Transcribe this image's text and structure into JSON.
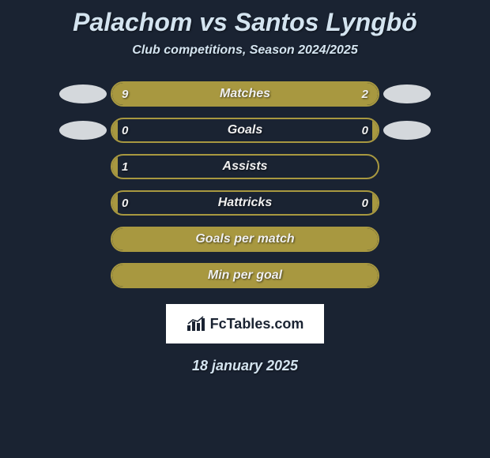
{
  "title": "Palachom vs Santos Lyngbö",
  "subtitle": "Club competitions, Season 2024/2025",
  "footer_date": "18 january 2025",
  "logo_text": "FcTables.com",
  "colors": {
    "background": "#1a2332",
    "bar_fill": "#a89840",
    "bar_border": "#a89840",
    "text": "#d4e4f0",
    "avatar": "#d4d8dc"
  },
  "rows": [
    {
      "label": "Matches",
      "left_value": "9",
      "right_value": "2",
      "left_pct": 82,
      "right_pct": 18,
      "show_avatars": true,
      "full_fill": true
    },
    {
      "label": "Goals",
      "left_value": "0",
      "right_value": "0",
      "left_pct": 2,
      "right_pct": 2,
      "show_avatars": true,
      "full_fill": false
    },
    {
      "label": "Assists",
      "left_value": "1",
      "right_value": "",
      "left_pct": 2,
      "right_pct": 0,
      "show_avatars": false,
      "full_fill": false
    },
    {
      "label": "Hattricks",
      "left_value": "0",
      "right_value": "0",
      "left_pct": 2,
      "right_pct": 2,
      "show_avatars": false,
      "full_fill": false
    },
    {
      "label": "Goals per match",
      "left_value": "",
      "right_value": "",
      "left_pct": 0,
      "right_pct": 0,
      "show_avatars": false,
      "full_fill": true
    },
    {
      "label": "Min per goal",
      "left_value": "",
      "right_value": "",
      "left_pct": 0,
      "right_pct": 0,
      "show_avatars": false,
      "full_fill": true
    }
  ]
}
